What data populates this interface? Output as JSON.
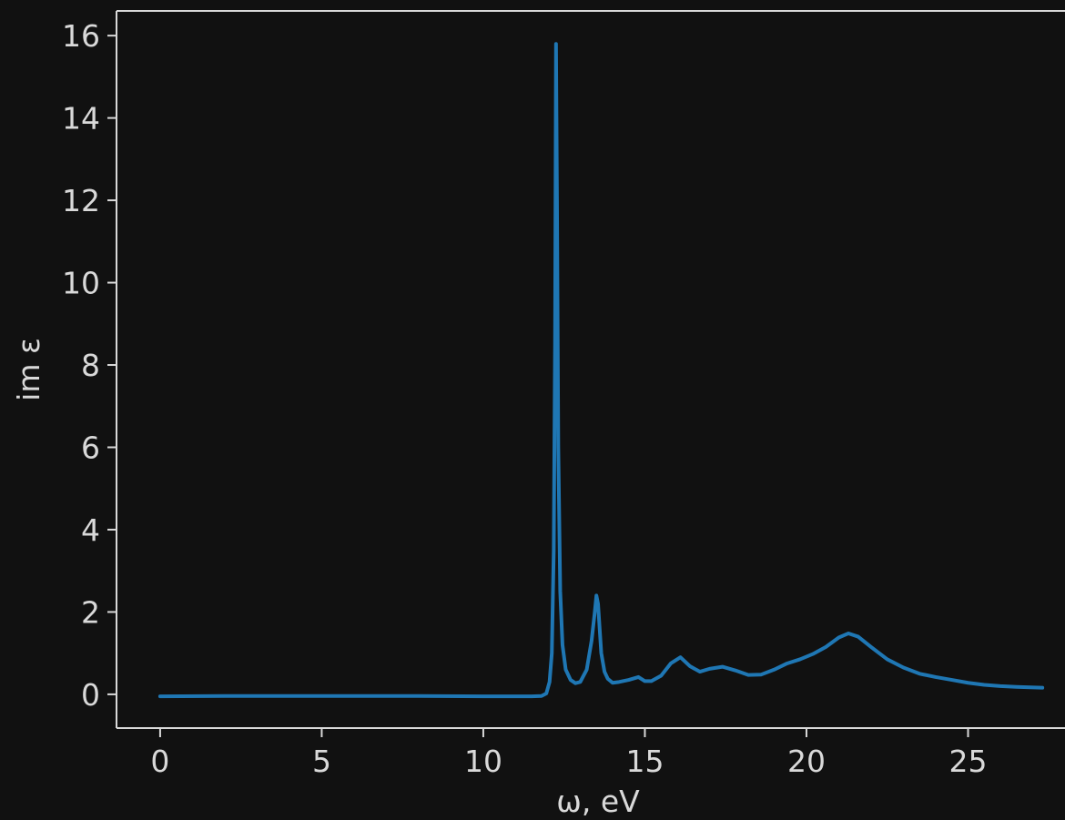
{
  "chart_data": {
    "type": "line",
    "title": "",
    "xlabel": "ω, eV",
    "ylabel": "im ε",
    "xlim": [
      -1.35,
      28.0
    ],
    "ylim": [
      -0.82,
      16.6
    ],
    "xticks": [
      0,
      5,
      10,
      15,
      20,
      25
    ],
    "yticks": [
      0,
      2,
      4,
      6,
      8,
      10,
      12,
      14,
      16
    ],
    "xtick_labels": [
      "0",
      "5",
      "10",
      "15",
      "20",
      "25"
    ],
    "ytick_labels": [
      "0",
      "2",
      "4",
      "6",
      "8",
      "10",
      "12",
      "14",
      "16"
    ],
    "grid": false,
    "legend": "none",
    "colors": {
      "background": "#111111",
      "axes": "#d9d9d9",
      "line": "#1f77b4"
    },
    "series": [
      {
        "x": [
          0,
          2,
          4,
          6,
          8,
          10,
          11,
          11.5,
          11.8,
          11.95,
          12.05,
          12.12,
          12.18,
          12.22,
          12.25,
          12.28,
          12.32,
          12.38,
          12.45,
          12.55,
          12.7,
          12.85,
          13.0,
          13.2,
          13.35,
          13.45,
          13.5,
          13.55,
          13.6,
          13.65,
          13.75,
          13.85,
          14.0,
          14.2,
          14.5,
          14.8,
          15.0,
          15.2,
          15.5,
          15.8,
          16.1,
          16.4,
          16.7,
          17.0,
          17.4,
          17.8,
          18.2,
          18.6,
          19.0,
          19.4,
          19.8,
          20.2,
          20.6,
          21.0,
          21.3,
          21.6,
          22.0,
          22.5,
          23.0,
          23.5,
          24.0,
          24.5,
          25.0,
          25.5,
          26.0,
          26.5,
          27.3
        ],
        "y": [
          -0.05,
          -0.04,
          -0.04,
          -0.04,
          -0.04,
          -0.05,
          -0.05,
          -0.05,
          -0.04,
          0.02,
          0.3,
          1.0,
          3.5,
          8.5,
          15.8,
          12.0,
          6.0,
          2.5,
          1.2,
          0.6,
          0.35,
          0.27,
          0.3,
          0.6,
          1.3,
          2.0,
          2.4,
          2.2,
          1.6,
          1.0,
          0.55,
          0.38,
          0.28,
          0.3,
          0.35,
          0.42,
          0.32,
          0.32,
          0.45,
          0.75,
          0.9,
          0.68,
          0.55,
          0.62,
          0.67,
          0.58,
          0.47,
          0.48,
          0.6,
          0.75,
          0.85,
          0.98,
          1.15,
          1.38,
          1.48,
          1.4,
          1.15,
          0.85,
          0.65,
          0.5,
          0.42,
          0.35,
          0.28,
          0.23,
          0.2,
          0.18,
          0.16
        ]
      }
    ]
  }
}
